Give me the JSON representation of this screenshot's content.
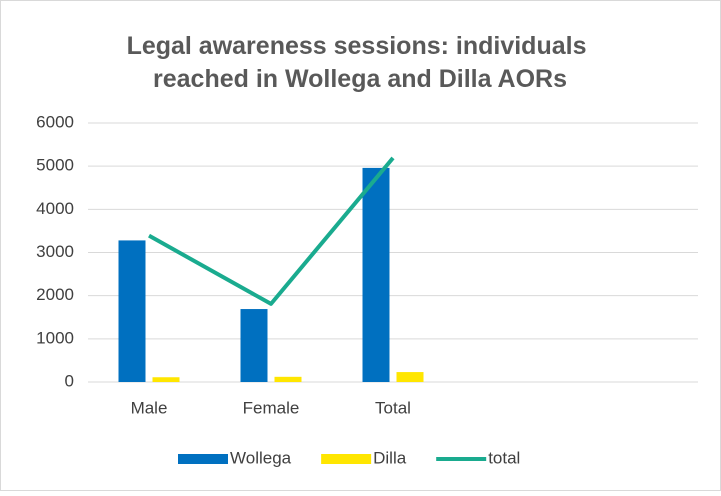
{
  "chart_data": {
    "type": "bar-line",
    "title": "Legal awareness sessions: individuals reached in Wollega and Dilla AORs",
    "categories": [
      "Male",
      "Female",
      "Total",
      null,
      null
    ],
    "series": [
      {
        "name": "Wollega",
        "type": "bar",
        "color": "#0070c0",
        "values": [
          3280,
          1690,
          4960,
          null,
          null
        ]
      },
      {
        "name": "Dilla",
        "type": "bar",
        "color": "#ffe600",
        "values": [
          110,
          120,
          230,
          null,
          null
        ]
      },
      {
        "name": "total",
        "type": "line",
        "color": "#1aab8f",
        "values": [
          3390,
          1810,
          5190,
          null,
          null
        ]
      }
    ],
    "ylim": [
      0,
      6000
    ],
    "yticks": [
      0,
      1000,
      2000,
      3000,
      4000,
      5000,
      6000
    ],
    "grid": true,
    "legend": "bottom"
  }
}
